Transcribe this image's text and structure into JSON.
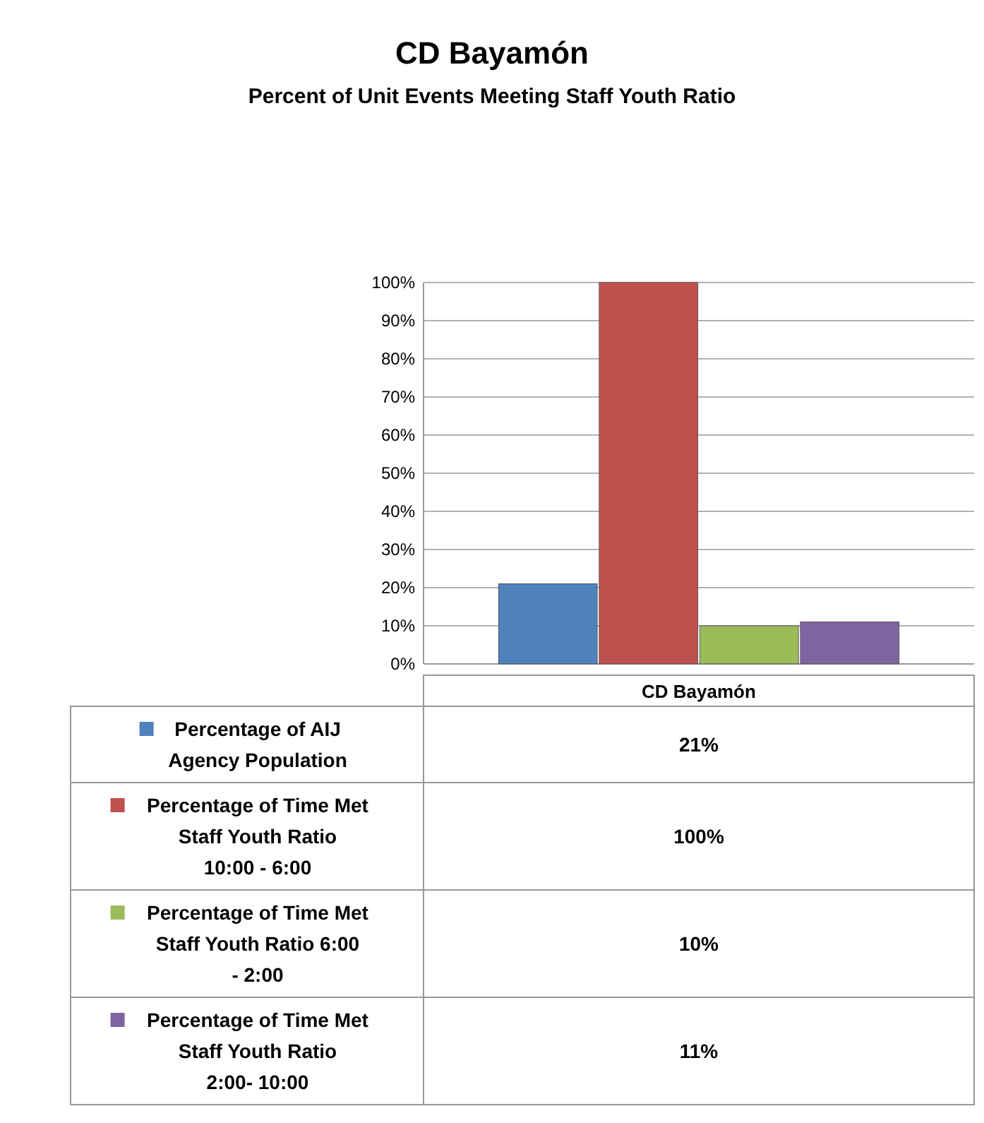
{
  "chart_data": {
    "type": "bar",
    "title": "CD Bayamón",
    "subtitle": "Percent of Unit Events Meeting Staff Youth Ratio",
    "categories": [
      "CD Bayamón"
    ],
    "series": [
      {
        "name": "Percentage of AIJ Agency Population",
        "color": "#4f81bd",
        "values": [
          21
        ]
      },
      {
        "name": "Percentage of Time Met Staff Youth Ratio 10:00 - 6:00",
        "color": "#c0504d",
        "values": [
          100
        ]
      },
      {
        "name": "Percentage of Time Met Staff Youth Ratio 6:00 - 2:00",
        "color": "#9bbb59",
        "values": [
          10
        ]
      },
      {
        "name": "Percentage of Time Met Staff Youth Ratio 2:00- 10:00",
        "color": "#8064a2",
        "values": [
          11
        ]
      }
    ],
    "ylim": [
      0,
      100
    ],
    "yticks": [
      {
        "value": 0,
        "label": "0%"
      },
      {
        "value": 10,
        "label": "10%"
      },
      {
        "value": 20,
        "label": "20%"
      },
      {
        "value": 30,
        "label": "30%"
      },
      {
        "value": 40,
        "label": "40%"
      },
      {
        "value": 50,
        "label": "50%"
      },
      {
        "value": 60,
        "label": "60%"
      },
      {
        "value": 70,
        "label": "70%"
      },
      {
        "value": 80,
        "label": "80%"
      },
      {
        "value": 90,
        "label": "90%"
      },
      {
        "value": 100,
        "label": "100%"
      }
    ],
    "grid": true,
    "legend": "bottom",
    "annotations": [
      "21%",
      "100%",
      "10%",
      "11%"
    ]
  }
}
